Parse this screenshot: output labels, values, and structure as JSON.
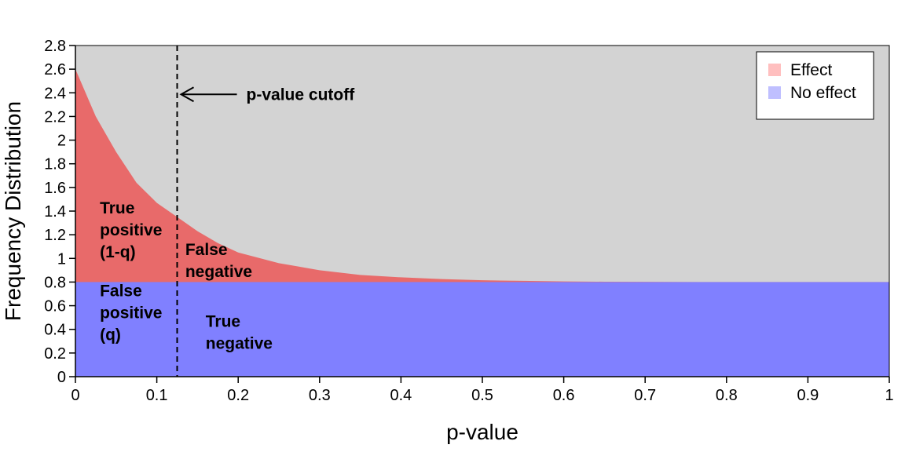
{
  "chart_data": {
    "type": "area",
    "xlabel": "p-value",
    "ylabel": "Frequency Distribution",
    "xlim": [
      0,
      1
    ],
    "ylim": [
      0,
      2.8
    ],
    "xticks": [
      "0",
      "0.1",
      "0.2",
      "0.3",
      "0.4",
      "0.5",
      "0.6",
      "0.7",
      "0.8",
      "0.9",
      "1"
    ],
    "yticks": [
      "0",
      "0.2",
      "0.4",
      "0.6",
      "0.8",
      "1",
      "1.2",
      "1.4",
      "1.6",
      "1.8",
      "2",
      "2.2",
      "2.4",
      "2.6",
      "2.8"
    ],
    "grid": false,
    "legend_position": "top-right",
    "cutoff": 0.125,
    "background_color": "#d3d3d3",
    "series": [
      {
        "name": "No effect",
        "color": "#8080ff",
        "legend_color": "#bfbfff",
        "x": [
          0,
          1
        ],
        "y": [
          0.8,
          0.8
        ]
      },
      {
        "name": "Effect",
        "color": "#e86a6a",
        "legend_color": "#ffbfbf",
        "x": [
          0,
          0.025,
          0.05,
          0.075,
          0.1,
          0.125,
          0.15,
          0.175,
          0.2,
          0.25,
          0.3,
          0.35,
          0.4,
          0.45,
          0.5,
          0.55,
          0.6,
          0.65,
          0.7,
          0.8,
          0.9,
          1.0
        ],
        "y": [
          2.6,
          2.2,
          1.9,
          1.64,
          1.47,
          1.35,
          1.23,
          1.13,
          1.05,
          0.96,
          0.9,
          0.86,
          0.84,
          0.825,
          0.815,
          0.81,
          0.805,
          0.803,
          0.802,
          0.8,
          0.8,
          0.8
        ]
      }
    ],
    "region_labels": [
      {
        "lines": [
          "True",
          "positive",
          "(1-q)"
        ],
        "x": 0.03,
        "y": 1.38
      },
      {
        "lines": [
          "False",
          "negative"
        ],
        "x": 0.135,
        "y": 1.03
      },
      {
        "lines": [
          "False",
          "positive",
          "(q)"
        ],
        "x": 0.03,
        "y": 0.68
      },
      {
        "lines": [
          "True",
          "negative"
        ],
        "x": 0.16,
        "y": 0.42
      }
    ],
    "annotation": {
      "text": "p-value cutoff",
      "x": 0.21,
      "y": 2.42
    }
  }
}
